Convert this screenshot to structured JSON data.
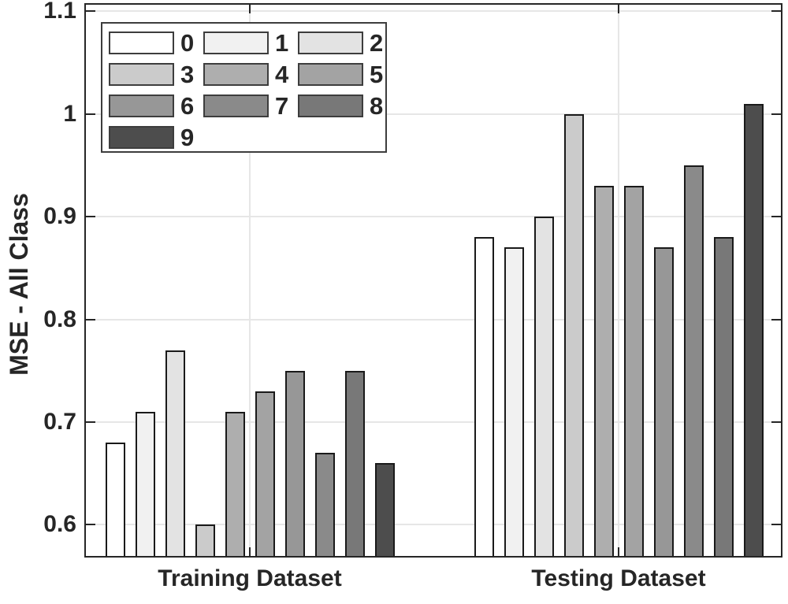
{
  "chart_data": {
    "type": "bar",
    "title": "",
    "xlabel": "",
    "ylabel": "MSE - All Class",
    "categories": [
      "Training Dataset",
      "Testing Dataset"
    ],
    "series": [
      {
        "name": "0",
        "color": "#FFFFFF",
        "values": [
          0.68,
          0.88
        ]
      },
      {
        "name": "1",
        "color": "#F1F1F1",
        "values": [
          0.71,
          0.87
        ]
      },
      {
        "name": "2",
        "color": "#E3E3E3",
        "values": [
          0.77,
          0.9
        ]
      },
      {
        "name": "3",
        "color": "#CBCBCB",
        "values": [
          0.6,
          1.0
        ]
      },
      {
        "name": "4",
        "color": "#AEAEAE",
        "values": [
          0.71,
          0.93
        ]
      },
      {
        "name": "5",
        "color": "#A3A3A3",
        "values": [
          0.73,
          0.93
        ]
      },
      {
        "name": "6",
        "color": "#979797",
        "values": [
          0.75,
          0.87
        ]
      },
      {
        "name": "7",
        "color": "#8A8A8A",
        "values": [
          0.67,
          0.95
        ]
      },
      {
        "name": "8",
        "color": "#787878",
        "values": [
          0.75,
          0.88
        ]
      },
      {
        "name": "9",
        "color": "#4D4D4D",
        "values": [
          0.66,
          1.01
        ]
      }
    ],
    "yticks": [
      0.6,
      0.7,
      0.8,
      0.9,
      1.0,
      1.1
    ],
    "ytick_labels": [
      "0.6",
      "0.7",
      "0.8",
      "0.9",
      "1",
      "1.1"
    ],
    "ylim": [
      0.568,
      1.108
    ],
    "grid": true,
    "legend_position": "northwest",
    "colors": {
      "axis": "#262626",
      "grid": "#E6E6E6",
      "bar_edge": "#1A1A1A",
      "background": "#FFFFFF"
    }
  }
}
